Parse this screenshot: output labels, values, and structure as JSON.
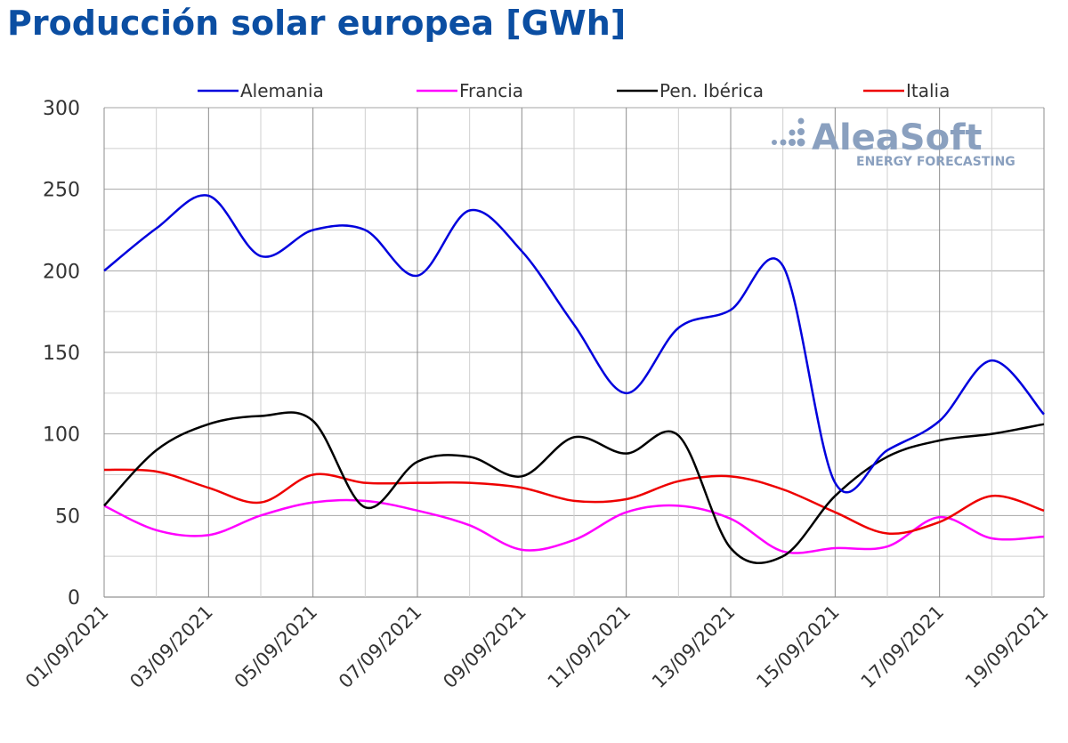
{
  "chart_data": {
    "type": "line",
    "title": "Producción solar europea [GWh]",
    "xlabel": "",
    "ylabel": "",
    "ylim": [
      0,
      300
    ],
    "yticks": [
      "0",
      "50",
      "100",
      "150",
      "200",
      "250",
      "300"
    ],
    "x": [
      "01/09/2021",
      "02/09/2021",
      "03/09/2021",
      "04/09/2021",
      "05/09/2021",
      "06/09/2021",
      "07/09/2021",
      "08/09/2021",
      "09/09/2021",
      "10/09/2021",
      "11/09/2021",
      "12/09/2021",
      "13/09/2021",
      "14/09/2021",
      "15/09/2021",
      "16/09/2021",
      "17/09/2021",
      "18/09/2021",
      "19/09/2021"
    ],
    "xtick_labels": [
      "01/09/2021",
      "03/09/2021",
      "05/09/2021",
      "07/09/2021",
      "09/09/2021",
      "11/09/2021",
      "13/09/2021",
      "15/09/2021",
      "17/09/2021",
      "19/09/2021"
    ],
    "legend_position": "top",
    "grid": true,
    "series": [
      {
        "name": "Alemania",
        "color": "#0000dd",
        "values": [
          200,
          226,
          246,
          209,
          225,
          225,
          197,
          237,
          212,
          167,
          125,
          165,
          176,
          203,
          70,
          90,
          108,
          145,
          112
        ]
      },
      {
        "name": "Francia",
        "color": "#ff00ff",
        "values": [
          56,
          41,
          38,
          50,
          58,
          59,
          53,
          44,
          29,
          35,
          52,
          56,
          48,
          28,
          30,
          31,
          49,
          36,
          37
        ]
      },
      {
        "name": "Pen. Ibérica",
        "color": "#000000",
        "values": [
          56,
          90,
          106,
          111,
          108,
          55,
          83,
          86,
          74,
          98,
          88,
          99,
          30,
          25,
          62,
          86,
          96,
          100,
          106
        ]
      },
      {
        "name": "Italia",
        "color": "#ee0000",
        "values": [
          78,
          77,
          67,
          58,
          75,
          70,
          70,
          70,
          67,
          59,
          60,
          71,
          74,
          66,
          52,
          39,
          46,
          62,
          53
        ]
      }
    ]
  },
  "watermark": {
    "brand": "AleaSoft",
    "tagline": "ENERGY FORECASTING",
    "color": "#8aa0bf"
  }
}
